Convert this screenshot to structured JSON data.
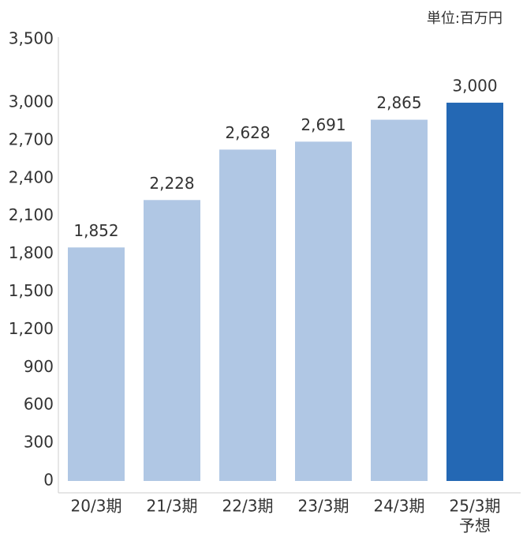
{
  "chart_data": {
    "type": "bar",
    "unit_label": "単位:百万円",
    "categories": [
      "20/3期",
      "21/3期",
      "22/3期",
      "23/3期",
      "24/3期",
      "25/3期"
    ],
    "forecast_label": "予想",
    "values": [
      1852,
      2228,
      2628,
      2691,
      2865,
      3000
    ],
    "value_labels": [
      "1,852",
      "2,228",
      "2,628",
      "2,691",
      "2,865",
      "3,000"
    ],
    "colors": [
      "#b0c7e4",
      "#b0c7e4",
      "#b0c7e4",
      "#b0c7e4",
      "#b0c7e4",
      "#2468b4"
    ],
    "ylim": [
      0,
      3520
    ],
    "yticks": [
      0,
      300,
      600,
      900,
      {
        "value": 1200,
        "label": "1,200"
      },
      {
        "value": 1500,
        "label": "1,500"
      },
      {
        "value": 1800,
        "label": "1,800"
      },
      {
        "value": 2100,
        "label": "2,100"
      },
      {
        "value": 2400,
        "label": "2,400"
      },
      {
        "value": 2700,
        "label": "2,700"
      },
      {
        "value": 3000,
        "label": "3,000"
      },
      {
        "value": 3500,
        "label": "3,500"
      }
    ],
    "grid": false
  }
}
